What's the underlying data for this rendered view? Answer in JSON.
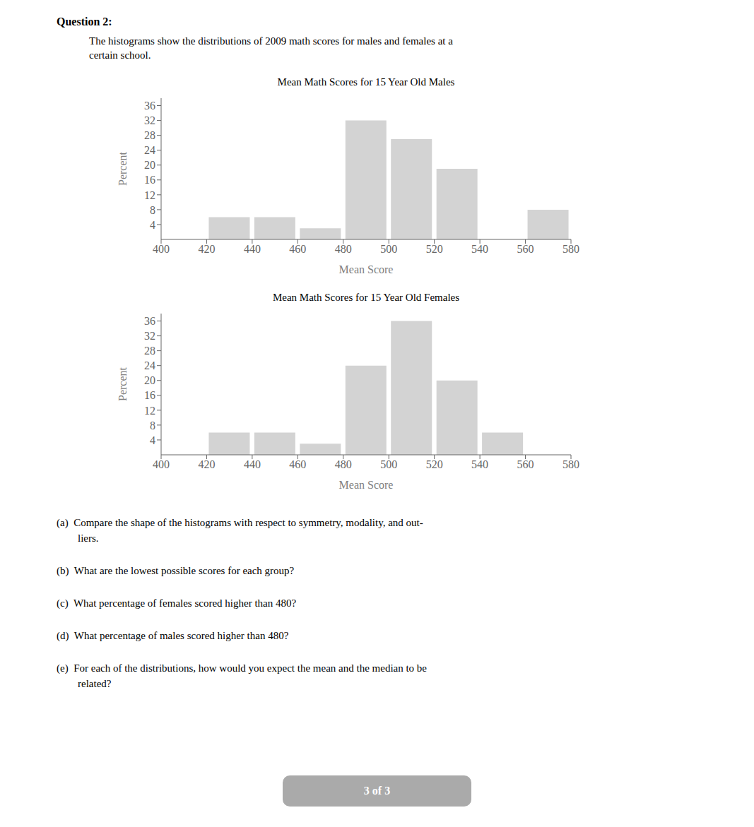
{
  "title": "Question 2:",
  "subtitle": [
    "The histograms show the distributions of 2009 math scores for males and females at a",
    "certain school."
  ],
  "annotations": [
    "(a)  Compare the shape of the histograms with respect to symmetry, modality, and out-",
    "liers.",
    "(b)  What are the lowest possible scores for each group?",
    "(c)  What percentage of females scored higher than 480?",
    "(d)  What percentage of males scored higher than 480?",
    "(e)  For each of the distributions, how would you expect the mean and the median to be",
    "related?"
  ],
  "page_indicator": "3 of 3",
  "chart_data": [
    {
      "type": "histogram",
      "title": "Mean Math Scores for 15 Year Old Males",
      "xlabel": "Mean Score",
      "ylabel": "Percent",
      "bins": [
        400,
        420,
        440,
        460,
        480,
        500,
        520,
        540,
        560,
        580
      ],
      "values": [
        0,
        6,
        6,
        3,
        32,
        27,
        19,
        0,
        8
      ],
      "color": "#d3d3d3",
      "xlim": [
        400,
        580
      ],
      "ylim": [
        0,
        38
      ],
      "xticks": [
        400,
        420,
        440,
        460,
        480,
        500,
        520,
        540,
        560,
        580
      ],
      "yticks": [
        4,
        8,
        12,
        16,
        20,
        24,
        28,
        32,
        36
      ],
      "grid": false
    },
    {
      "type": "histogram",
      "title": "Mean Math Scores for 15 Year Old Females",
      "xlabel": "Mean Score",
      "ylabel": "Percent",
      "bins": [
        400,
        420,
        440,
        460,
        480,
        500,
        520,
        540,
        560,
        580
      ],
      "values": [
        0,
        6,
        6,
        3,
        24,
        36,
        20,
        6,
        0
      ],
      "color": "#d3d3d3",
      "xlim": [
        400,
        580
      ],
      "ylim": [
        0,
        38
      ],
      "xticks": [
        400,
        420,
        440,
        460,
        480,
        500,
        520,
        540,
        560,
        580
      ],
      "yticks": [
        4,
        8,
        12,
        16,
        20,
        24,
        28,
        32,
        36
      ],
      "grid": false
    }
  ]
}
